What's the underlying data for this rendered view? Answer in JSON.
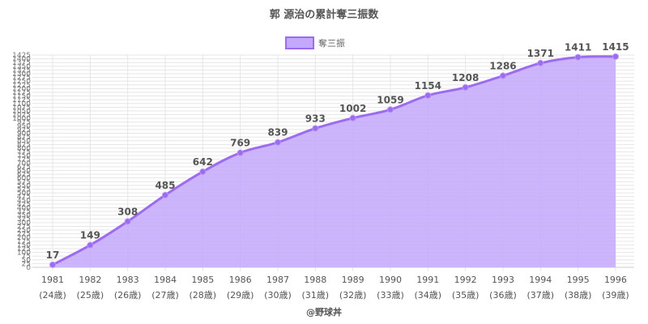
{
  "chart_data": {
    "type": "area",
    "title": "郭 源治の累計奪三振数",
    "legend": {
      "label": "奪三振",
      "position": "top"
    },
    "x": [
      "1981",
      "1982",
      "1983",
      "1984",
      "1985",
      "1986",
      "1987",
      "1988",
      "1989",
      "1990",
      "1991",
      "1992",
      "1993",
      "1994",
      "1995",
      "1996"
    ],
    "ages": [
      "(24歳)",
      "(25歳)",
      "(26歳)",
      "(27歳)",
      "(28歳)",
      "(29歳)",
      "(30歳)",
      "(31歳)",
      "(32歳)",
      "(33歳)",
      "(34歳)",
      "(35歳)",
      "(36歳)",
      "(37歳)",
      "(38歳)",
      "(39歳)"
    ],
    "series": [
      {
        "name": "奪三振",
        "values": [
          17,
          149,
          308,
          485,
          642,
          769,
          839,
          933,
          1002,
          1059,
          1154,
          1208,
          1286,
          1371,
          1411,
          1415
        ]
      }
    ],
    "ylim": [
      0,
      1425
    ],
    "ytick_step": 25,
    "grid": true,
    "colors": {
      "line": "#9c6bef",
      "fill": "#c4a8fb",
      "point": "#9c6bef",
      "grid": "#e6e6e6"
    }
  },
  "footer": "@野球丼"
}
